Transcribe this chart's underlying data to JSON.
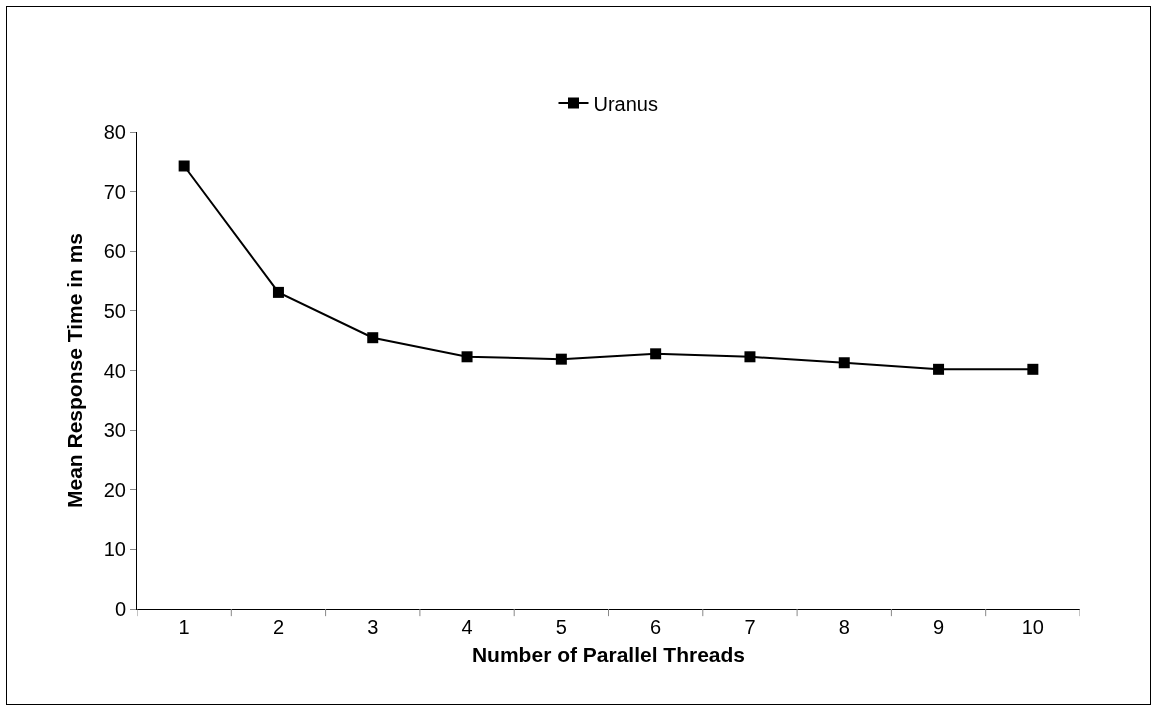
{
  "chart_data": {
    "type": "line",
    "xlabel": "Number of Parallel Threads",
    "ylabel": "Mean Response Time in ms",
    "categories": [
      "1",
      "2",
      "3",
      "4",
      "5",
      "6",
      "7",
      "8",
      "9",
      "10"
    ],
    "series": [
      {
        "name": "Uranus",
        "color": "#000000",
        "values": [
          74.3,
          53.1,
          45.5,
          42.3,
          41.9,
          42.8,
          42.3,
          41.3,
          40.2,
          40.2
        ]
      }
    ],
    "ylim": [
      0,
      80
    ],
    "yticks": [
      0,
      10,
      20,
      30,
      40,
      50,
      60,
      70,
      80
    ],
    "grid": false,
    "legend": "top",
    "marker": "square",
    "line_style": "solid"
  }
}
